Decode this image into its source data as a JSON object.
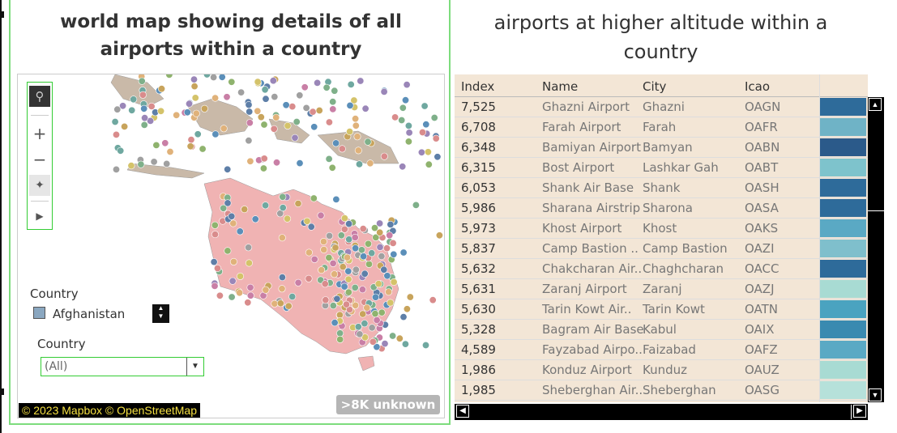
{
  "map": {
    "title": "world map showing details of all airports within a country",
    "legend_title": "Country",
    "legend_item": "Afghanistan",
    "legend_color": "#8aa7c0",
    "filter_title": "Country",
    "filter_value": "(All)",
    "attribution": "© 2023 Mapbox © OpenStreetMap",
    "unknown_badge": ">8K unknown",
    "tools": [
      "search-icon",
      "zoom-in-icon",
      "zoom-out-icon",
      "pin-map-icon",
      "play-icon"
    ]
  },
  "table": {
    "title": "airports at higher  altitude  within a country",
    "columns": [
      "Index",
      "Name",
      "City",
      "Icao"
    ],
    "rows": [
      {
        "index": "7,525",
        "name": "Ghazni Airport",
        "city": "Ghazni",
        "icao": "OAGN",
        "color": "#2e6b9a"
      },
      {
        "index": "6,708",
        "name": "Farah Airport",
        "city": "Farah",
        "icao": "OAFR",
        "color": "#6fb3c6"
      },
      {
        "index": "6,348",
        "name": "Bamiyan Airport",
        "city": "Bamyan",
        "icao": "OABN",
        "color": "#2b5a8a"
      },
      {
        "index": "6,315",
        "name": "Bost Airport",
        "city": "Lashkar Gah",
        "icao": "OABT",
        "color": "#7ec3cc"
      },
      {
        "index": "6,053",
        "name": "Shank Air Base",
        "city": "Shank",
        "icao": "OASH",
        "color": "#2e6b9a"
      },
      {
        "index": "5,986",
        "name": "Sharana Airstrip",
        "city": "Sharona",
        "icao": "OASA",
        "color": "#2e6b9a"
      },
      {
        "index": "5,973",
        "name": "Khost Airport",
        "city": "Khost",
        "icao": "OAKS",
        "color": "#5aa9c4"
      },
      {
        "index": "5,837",
        "name": "Camp Bastion ..",
        "city": "Camp Bastion",
        "icao": "OAZI",
        "color": "#7fbfcc"
      },
      {
        "index": "5,632",
        "name": "Chakcharan Air..",
        "city": "Chaghcharan",
        "icao": "OACC",
        "color": "#2e6b9a"
      },
      {
        "index": "5,631",
        "name": "Zaranj Airport",
        "city": "Zaranj",
        "icao": "OAZJ",
        "color": "#a8dbd3"
      },
      {
        "index": "5,630",
        "name": "Tarin Kowt Air..",
        "city": "Tarin Kowt",
        "icao": "OATN",
        "color": "#4aa3c0"
      },
      {
        "index": "5,328",
        "name": "Bagram Air Base",
        "city": "Kabul",
        "icao": "OAIX",
        "color": "#3a8ab0"
      },
      {
        "index": "4,589",
        "name": "Fayzabad Airpo..",
        "city": "Faizabad",
        "icao": "OAFZ",
        "color": "#5aa9c4"
      },
      {
        "index": "1,986",
        "name": "Konduz Airport",
        "city": "Kunduz",
        "icao": "OAUZ",
        "color": "#a8dbd3"
      },
      {
        "index": "1,985",
        "name": "Sheberghan Air..",
        "city": "Sheberghan",
        "icao": "OASG",
        "color": "#b6e1da"
      }
    ]
  }
}
